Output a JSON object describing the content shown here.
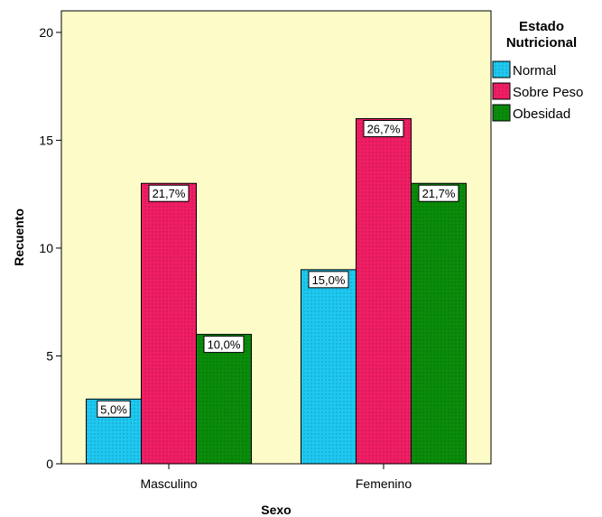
{
  "chart_data": {
    "type": "bar",
    "title": "",
    "xlabel": "Sexo",
    "ylabel": "Recuento",
    "categories": [
      "Masculino",
      "Femenino"
    ],
    "ylim": [
      0,
      21
    ],
    "yticks": [
      0,
      5,
      10,
      15,
      20
    ],
    "grid": false,
    "legend": {
      "title_line1": "Estado",
      "title_line2": "Nutricional",
      "placement": "right"
    },
    "series": [
      {
        "name": "Normal",
        "color": "#1ec8f0",
        "values": [
          3,
          9
        ],
        "labels": [
          "5,0%",
          "15,0%"
        ]
      },
      {
        "name": "Sobre Peso",
        "color": "#f01e64",
        "values": [
          13,
          16
        ],
        "labels": [
          "21,7%",
          "26,7%"
        ]
      },
      {
        "name": "Obesidad",
        "color": "#0a8c0a",
        "values": [
          6,
          13
        ],
        "labels": [
          "10,0%",
          "21,7%"
        ]
      }
    ]
  }
}
